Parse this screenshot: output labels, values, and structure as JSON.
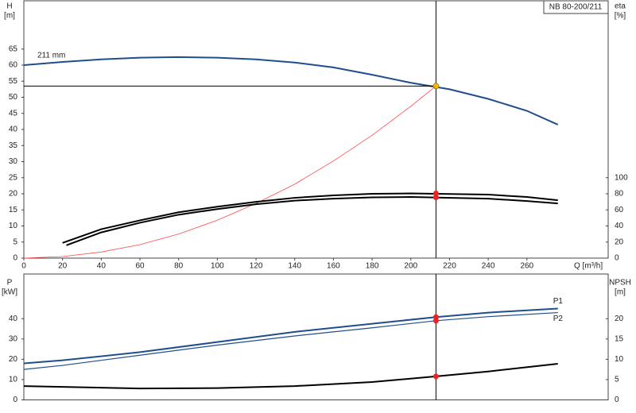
{
  "chart_data": [
    {
      "type": "line",
      "title": "NB 80-200/211",
      "annotations": [
        "211 mm"
      ],
      "xlabel": "Q [m³/h]",
      "ylabel": [
        "H",
        "[m]"
      ],
      "y2label": [
        "eta",
        "[%]"
      ],
      "xlim": [
        0,
        302
      ],
      "xticks": [
        0,
        20,
        40,
        60,
        80,
        100,
        120,
        140,
        160,
        180,
        200,
        220,
        240,
        260
      ],
      "ylim": [
        0,
        80
      ],
      "yticks": [
        0,
        5,
        10,
        15,
        20,
        25,
        30,
        35,
        40,
        45,
        50,
        55,
        60,
        65
      ],
      "y2lim": [
        0,
        320
      ],
      "y2ticks": [
        0,
        20,
        40,
        60,
        80,
        100
      ],
      "duty_x": 213,
      "series": [
        {
          "color": "#1f4e8c",
          "x": [
            0,
            20,
            40,
            60,
            80,
            100,
            120,
            140,
            160,
            180,
            200,
            220,
            240,
            260,
            276
          ],
          "values": [
            60,
            61,
            61.8,
            62.3,
            62.5,
            62.3,
            61.8,
            60.8,
            59.3,
            57,
            54.5,
            52.5,
            49.5,
            45.8,
            41.5
          ],
          "point": 53.5,
          "point_color": "#f5c400"
        },
        {
          "color": "#ff4a4a",
          "x": [
            0,
            20,
            40,
            60,
            80,
            100,
            120,
            140,
            160,
            180,
            200,
            213
          ],
          "values": [
            0,
            0.5,
            1.9,
            4.2,
            7.5,
            11.8,
            17,
            23,
            30.2,
            38.2,
            47.2,
            53.5
          ]
        },
        {
          "color": "#000000",
          "axis": "y2",
          "x": [
            20,
            40,
            60,
            80,
            100,
            120,
            140,
            160,
            180,
            200,
            240,
            260,
            276
          ],
          "values": [
            19,
            36,
            47,
            57,
            64,
            70,
            75,
            78,
            80,
            80.5,
            79,
            76,
            72
          ],
          "point": 80.5,
          "point_color": "#ee2222"
        },
        {
          "color": "#000000",
          "axis": "y2",
          "x": [
            22,
            40,
            60,
            80,
            100,
            120,
            140,
            160,
            180,
            200,
            240,
            260,
            276
          ],
          "values": [
            16,
            32,
            44,
            54,
            61,
            67,
            71.5,
            74,
            75.5,
            76,
            74,
            71,
            68
          ],
          "point": 75.5,
          "point_color": "#ee2222"
        }
      ]
    },
    {
      "type": "line",
      "ylabel": [
        "P",
        "[kW]"
      ],
      "y2label": [
        "NPSH",
        "[m]"
      ],
      "xlim": [
        0,
        302
      ],
      "ylim": [
        0,
        62
      ],
      "yticks": [
        0,
        10,
        20,
        30,
        40
      ],
      "y2lim": [
        0,
        31
      ],
      "y2ticks": [
        0,
        5,
        10,
        15,
        20
      ],
      "duty_x": 213,
      "series": [
        {
          "name": "P1",
          "color": "#1f4e8c",
          "x": [
            0,
            20,
            60,
            100,
            140,
            180,
            213,
            240,
            276
          ],
          "values": [
            18,
            19.5,
            23.5,
            28.5,
            33.5,
            37.5,
            40.8,
            43,
            45
          ],
          "point": 40.8,
          "point_color": "#ee2222"
        },
        {
          "name": "P2",
          "color": "#1f4e8c",
          "x": [
            0,
            20,
            60,
            100,
            140,
            180,
            213,
            240,
            276
          ],
          "values": [
            15,
            17,
            22,
            27,
            31.5,
            35.5,
            39,
            41,
            43
          ],
          "point": 39,
          "point_color": "#ee2222"
        },
        {
          "color": "#000000",
          "axis": "y2",
          "x": [
            0,
            60,
            100,
            140,
            180,
            213,
            240,
            276
          ],
          "values": [
            3.4,
            2.8,
            2.9,
            3.4,
            4.4,
            5.8,
            7,
            8.9
          ],
          "point": 5.8,
          "point_color": "#ee2222"
        }
      ]
    }
  ]
}
